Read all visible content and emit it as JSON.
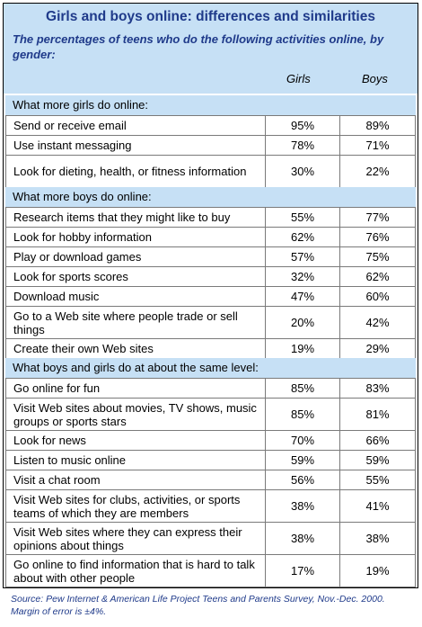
{
  "chart_data": {
    "type": "table",
    "title": "Girls and boys online: differences and similarities",
    "subtitle": "The percentages of teens who do the following activities online, by gender:",
    "columns": [
      "Girls",
      "Boys"
    ],
    "sections": [
      {
        "heading": "What more girls do online:",
        "rows": [
          {
            "label": "Send or receive email",
            "girls": "95%",
            "boys": "89%"
          },
          {
            "label": "Use instant messaging",
            "girls": "78%",
            "boys": "71%"
          },
          {
            "label": "Look for dieting, health, or fitness information",
            "girls": "30%",
            "boys": "22%"
          }
        ]
      },
      {
        "heading": "What more boys do online:",
        "rows": [
          {
            "label": "Research items that they might like to buy",
            "girls": "55%",
            "boys": "77%"
          },
          {
            "label": "Look for hobby information",
            "girls": "62%",
            "boys": "76%"
          },
          {
            "label": "Play or download games",
            "girls": "57%",
            "boys": "75%"
          },
          {
            "label": "Look for sports scores",
            "girls": "32%",
            "boys": "62%"
          },
          {
            "label": "Download music",
            "girls": "47%",
            "boys": "60%"
          },
          {
            "label": "Go to a Web site where people trade or sell things",
            "girls": "20%",
            "boys": "42%"
          },
          {
            "label": "Create their own Web sites",
            "girls": "19%",
            "boys": "29%"
          }
        ]
      },
      {
        "heading": "What boys and girls do at about the same level:",
        "rows": [
          {
            "label": "Go online for fun",
            "girls": "85%",
            "boys": "83%"
          },
          {
            "label": "Visit Web sites about movies, TV shows, music groups or sports stars",
            "girls": "85%",
            "boys": "81%"
          },
          {
            "label": "Look for news",
            "girls": "70%",
            "boys": "66%"
          },
          {
            "label": "Listen to music online",
            "girls": "59%",
            "boys": "59%"
          },
          {
            "label": "Visit a chat room",
            "girls": "56%",
            "boys": "55%"
          },
          {
            "label": "Visit Web sites for clubs, activities, or sports teams of which they are members",
            "girls": "38%",
            "boys": "41%"
          },
          {
            "label": "Visit Web sites where they can express their opinions about things",
            "girls": "38%",
            "boys": "38%"
          },
          {
            "label": "Go online to find information that is hard to talk about with other people",
            "girls": "17%",
            "boys": "19%"
          }
        ]
      }
    ],
    "source": "Source: Pew Internet & American Life Project Teens and Parents Survey, Nov.-Dec. 2000. Margin of error is ±4%."
  }
}
